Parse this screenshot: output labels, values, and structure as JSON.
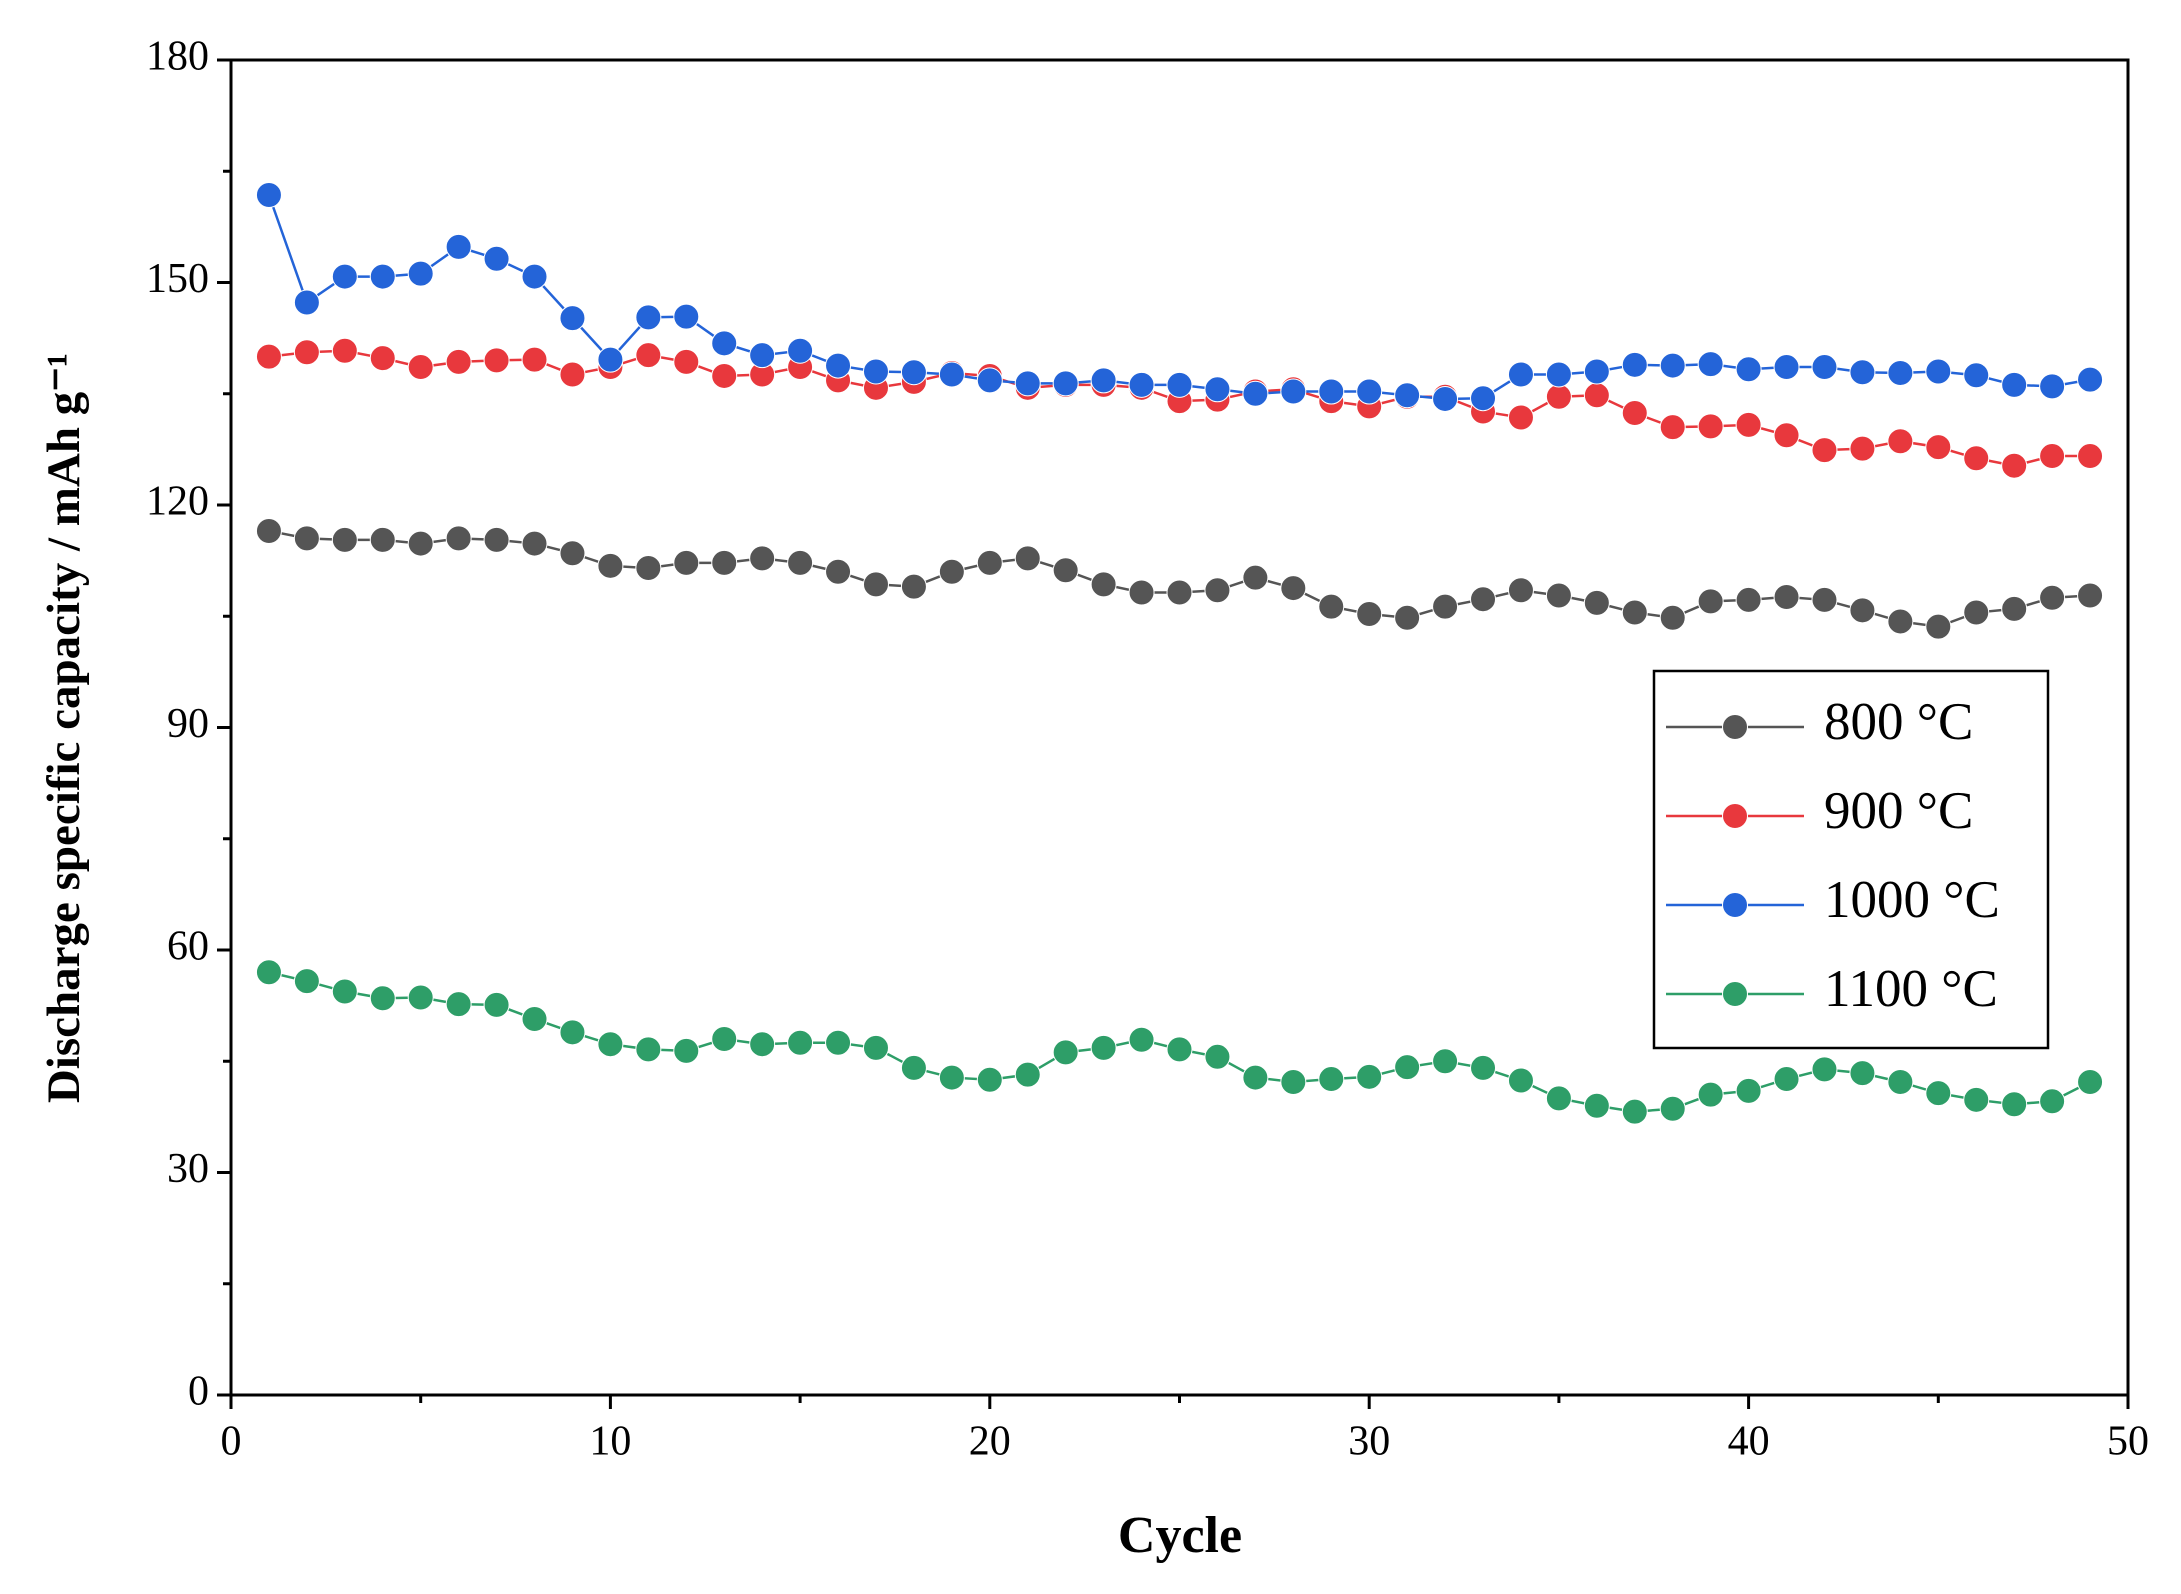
{
  "chart_data": {
    "type": "line",
    "xlabel": "Cycle",
    "ylabel": "Discharge specific capacity / mAh g⁻¹",
    "x": [
      1,
      2,
      3,
      4,
      5,
      6,
      7,
      8,
      9,
      10,
      11,
      12,
      13,
      14,
      15,
      16,
      17,
      18,
      19,
      20,
      21,
      22,
      23,
      24,
      25,
      26,
      27,
      28,
      29,
      30,
      31,
      32,
      33,
      34,
      35,
      36,
      37,
      38,
      39,
      40,
      41,
      42,
      43,
      44,
      45,
      46,
      47,
      48,
      49
    ],
    "series": [
      {
        "name": "800 °C",
        "color": "#555555",
        "values": [
          116.5,
          115.5,
          115.3,
          115.3,
          114.8,
          115.5,
          115.3,
          114.8,
          113.5,
          111.8,
          111.5,
          112.2,
          112.2,
          112.8,
          112.2,
          111,
          109.3,
          109,
          111,
          112.2,
          112.8,
          111.2,
          109.3,
          108.2,
          108.2,
          108.5,
          110.2,
          108.8,
          106.3,
          105.3,
          104.8,
          106.3,
          107.3,
          108.5,
          107.8,
          106.8,
          105.5,
          104.8,
          107,
          107.2,
          107.6,
          107.2,
          105.8,
          104.3,
          103.6,
          105.5,
          106,
          107.5,
          107.8
        ]
      },
      {
        "name": "900 °C",
        "color": "#e8383d",
        "values": [
          140,
          140.6,
          140.8,
          139.8,
          138.6,
          139.3,
          139.5,
          139.6,
          137.6,
          138.6,
          140.2,
          139.3,
          137.4,
          137.6,
          138.6,
          136.8,
          135.8,
          136.6,
          137.8,
          137.4,
          135.8,
          136.2,
          136.2,
          135.8,
          134,
          134.2,
          135.3,
          135.6,
          134,
          133.3,
          134.6,
          134.6,
          132.6,
          131.8,
          134.6,
          134.8,
          132.4,
          130.5,
          130.6,
          130.8,
          129.4,
          127.4,
          127.6,
          128.6,
          127.8,
          126.3,
          125.3,
          126.6,
          126.6
        ]
      },
      {
        "name": "1000 °C",
        "color": "#2464d8",
        "values": [
          161.8,
          147.3,
          150.8,
          150.8,
          151.2,
          154.8,
          153.2,
          150.8,
          145.2,
          139.6,
          145.3,
          145.4,
          141.8,
          140.2,
          140.8,
          138.8,
          138,
          137.9,
          137.6,
          136.8,
          136.4,
          136.4,
          136.8,
          136.2,
          136.2,
          135.6,
          135,
          135.3,
          135.3,
          135.3,
          134.8,
          134.3,
          134.4,
          137.6,
          137.6,
          138,
          138.9,
          138.8,
          139,
          138.3,
          138.6,
          138.6,
          137.9,
          137.8,
          138,
          137.5,
          136.2,
          136,
          136.9
        ]
      },
      {
        "name": "1100 °C",
        "color": "#2e9e68",
        "values": [
          57,
          55.8,
          54.4,
          53.5,
          53.6,
          52.7,
          52.6,
          50.7,
          48.9,
          47.3,
          46.6,
          46.4,
          48,
          47.3,
          47.5,
          47.5,
          46.8,
          44.1,
          42.8,
          42.5,
          43.2,
          46.2,
          46.8,
          47.9,
          46.6,
          45.6,
          42.8,
          42.2,
          42.6,
          42.9,
          44.2,
          45,
          44.1,
          42.4,
          40,
          39,
          38.2,
          38.6,
          40.5,
          41,
          42.6,
          43.9,
          43.4,
          42.2,
          40.7,
          39.8,
          39.2,
          39.6,
          42.2
        ]
      }
    ],
    "xlim": [
      0,
      50
    ],
    "xticks": [
      0,
      10,
      20,
      30,
      40,
      50
    ],
    "ylim": [
      0,
      180
    ],
    "yticks": [
      0,
      30,
      60,
      90,
      120,
      150,
      180
    ],
    "legend": "right"
  }
}
